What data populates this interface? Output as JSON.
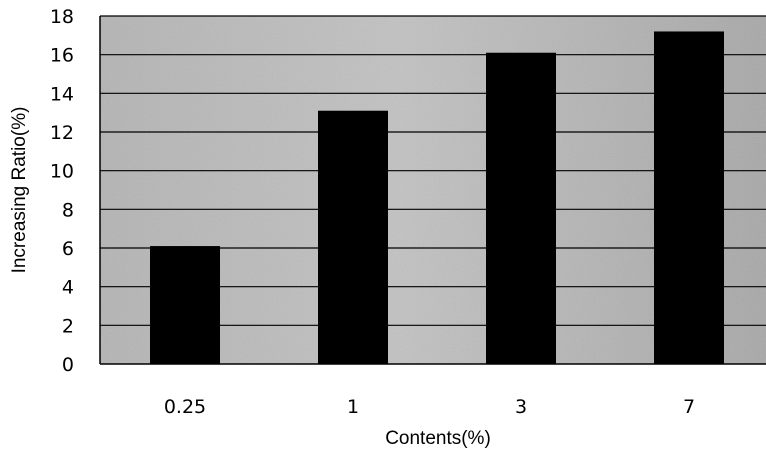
{
  "chart_data": {
    "type": "bar",
    "categories": [
      "0.25",
      "1",
      "3",
      "7"
    ],
    "values": [
      6.1,
      13.1,
      16.1,
      17.2
    ],
    "xlabel": "Contents(%)",
    "ylabel": "Increasing Ratio(%)",
    "ylim": [
      0,
      18
    ],
    "yticks": [
      0,
      2,
      4,
      6,
      8,
      10,
      12,
      14,
      16,
      18
    ],
    "grid": true,
    "legend": "none",
    "colors": {
      "bar": "#000000",
      "plot_background": "#a9a9a9",
      "gridline": "#000000"
    }
  }
}
